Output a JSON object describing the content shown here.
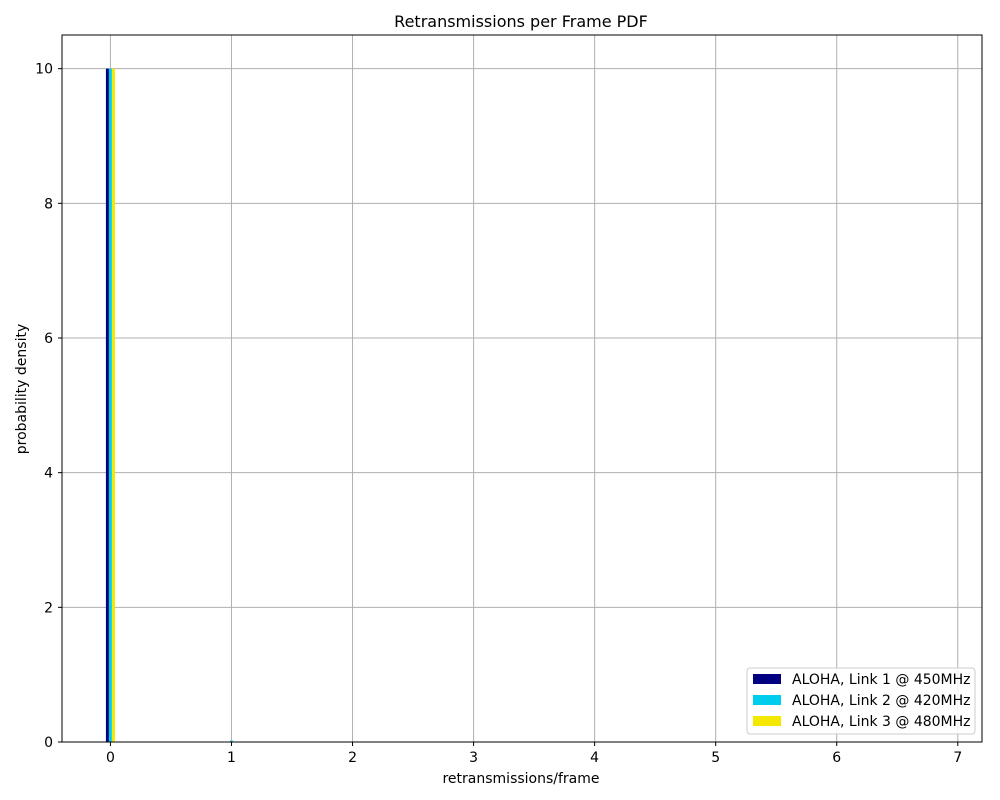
{
  "chart_data": {
    "type": "bar",
    "title": "Retransmissions per Frame PDF",
    "xlabel": "retransmissions/frame",
    "ylabel": "probability density",
    "xlim": [
      -0.4,
      7.2
    ],
    "ylim": [
      0,
      10.5
    ],
    "xticks": [
      0,
      1,
      2,
      3,
      4,
      5,
      6,
      7
    ],
    "yticks": [
      0,
      2,
      4,
      6,
      8,
      10
    ],
    "grid": true,
    "legend_position": "lower-right",
    "series": [
      {
        "name": "ALOHA, Link 1 @ 450MHz",
        "color": "#000080",
        "x": [
          0,
          1
        ],
        "values": [
          10,
          0
        ]
      },
      {
        "name": "ALOHA, Link 2 @ 420MHz",
        "color": "#00ccee",
        "x": [
          0,
          1
        ],
        "values": [
          10,
          0.02
        ]
      },
      {
        "name": "ALOHA, Link 3 @ 480MHz",
        "color": "#f5e800",
        "x": [
          0,
          1
        ],
        "values": [
          10,
          0
        ]
      }
    ]
  }
}
